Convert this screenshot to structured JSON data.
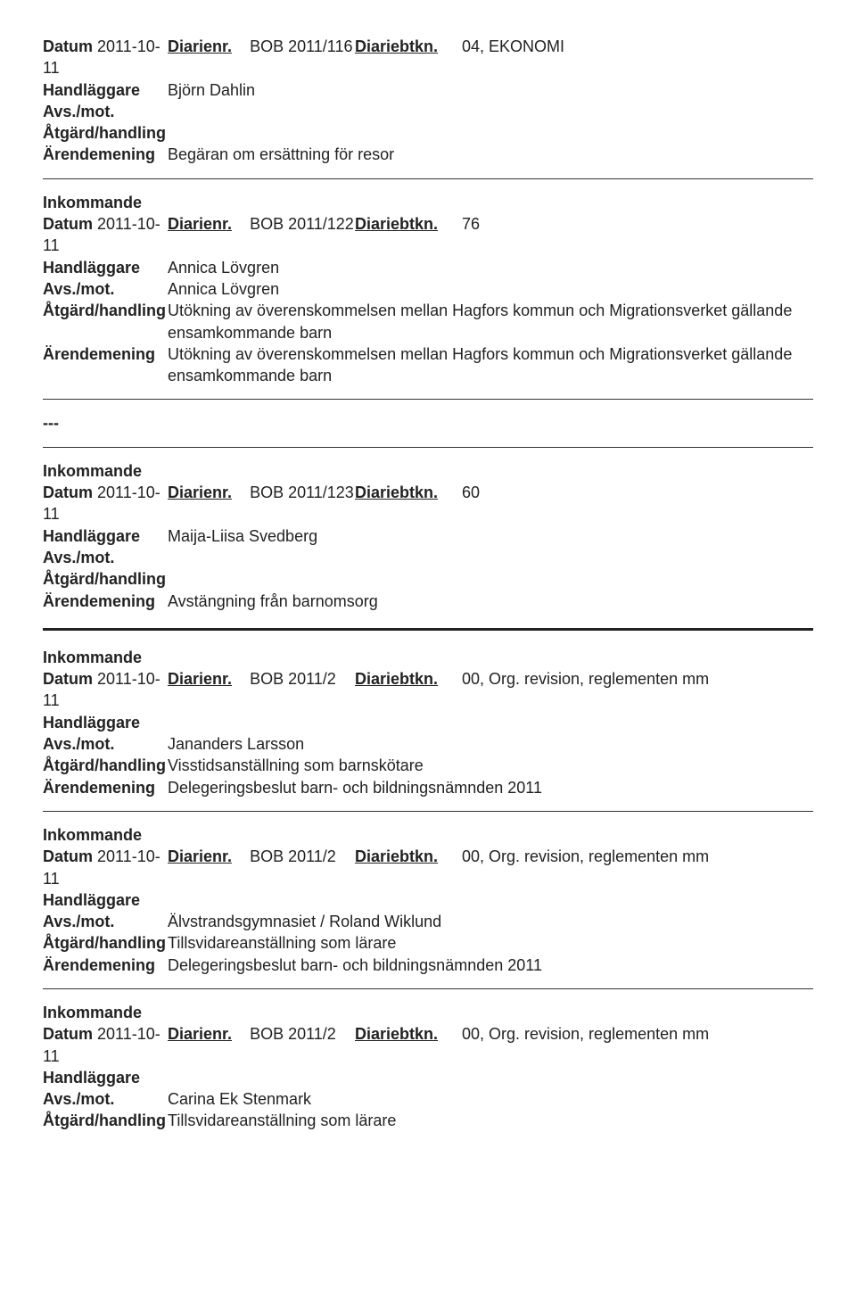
{
  "labels": {
    "datum": "Datum",
    "diarienr": "Diarienr.",
    "diariebtkn": "Diariebtkn.",
    "handlaggare": "Handläggare",
    "avsmot": "Avs./mot.",
    "atgard": "Åtgärd/handling",
    "arendemening": "Ärendemening",
    "inkommande": "Inkommande",
    "sep3": "---"
  },
  "e1": {
    "datum": "2011-10-11",
    "diarienr": "BOB 2011/116",
    "diariebtkn": "04, EKONOMI",
    "handlaggare": "Björn Dahlin",
    "arendemening": "Begäran om ersättning för resor"
  },
  "e2": {
    "datum": "2011-10-11",
    "diarienr": "BOB 2011/122",
    "diariebtkn": "76",
    "handlaggare": "Annica Lövgren",
    "avsmot": "Annica Lövgren",
    "atgard": "Utökning av överenskommelsen mellan Hagfors kommun och Migrationsverket gällande ensamkommande barn",
    "arendemening": "Utökning av överenskommelsen mellan Hagfors kommun och Migrationsverket gällande ensamkommande barn"
  },
  "e3": {
    "datum": "2011-10-11",
    "diarienr": "BOB 2011/123",
    "diariebtkn": "60",
    "handlaggare": "Maija-Liisa Svedberg",
    "arendemening": "Avstängning från barnomsorg"
  },
  "e4": {
    "datum": "2011-10-11",
    "diarienr": "BOB 2011/2",
    "diariebtkn": "00, Org. revision, reglementen mm",
    "avsmot": "Jananders Larsson",
    "atgard": "Visstidsanställning som barnskötare",
    "arendemening": "Delegeringsbeslut barn- och bildningsnämnden 2011"
  },
  "e5": {
    "datum": "2011-10-11",
    "diarienr": "BOB 2011/2",
    "diariebtkn": "00, Org. revision, reglementen mm",
    "avsmot": "Älvstrandsgymnasiet / Roland Wiklund",
    "atgard": "Tillsvidareanställning som lärare",
    "arendemening": "Delegeringsbeslut barn- och bildningsnämnden 2011"
  },
  "e6": {
    "datum": "2011-10-11",
    "diarienr": "BOB 2011/2",
    "diariebtkn": "00, Org. revision, reglementen mm",
    "avsmot": "Carina Ek Stenmark",
    "atgard": "Tillsvidareanställning som lärare"
  }
}
